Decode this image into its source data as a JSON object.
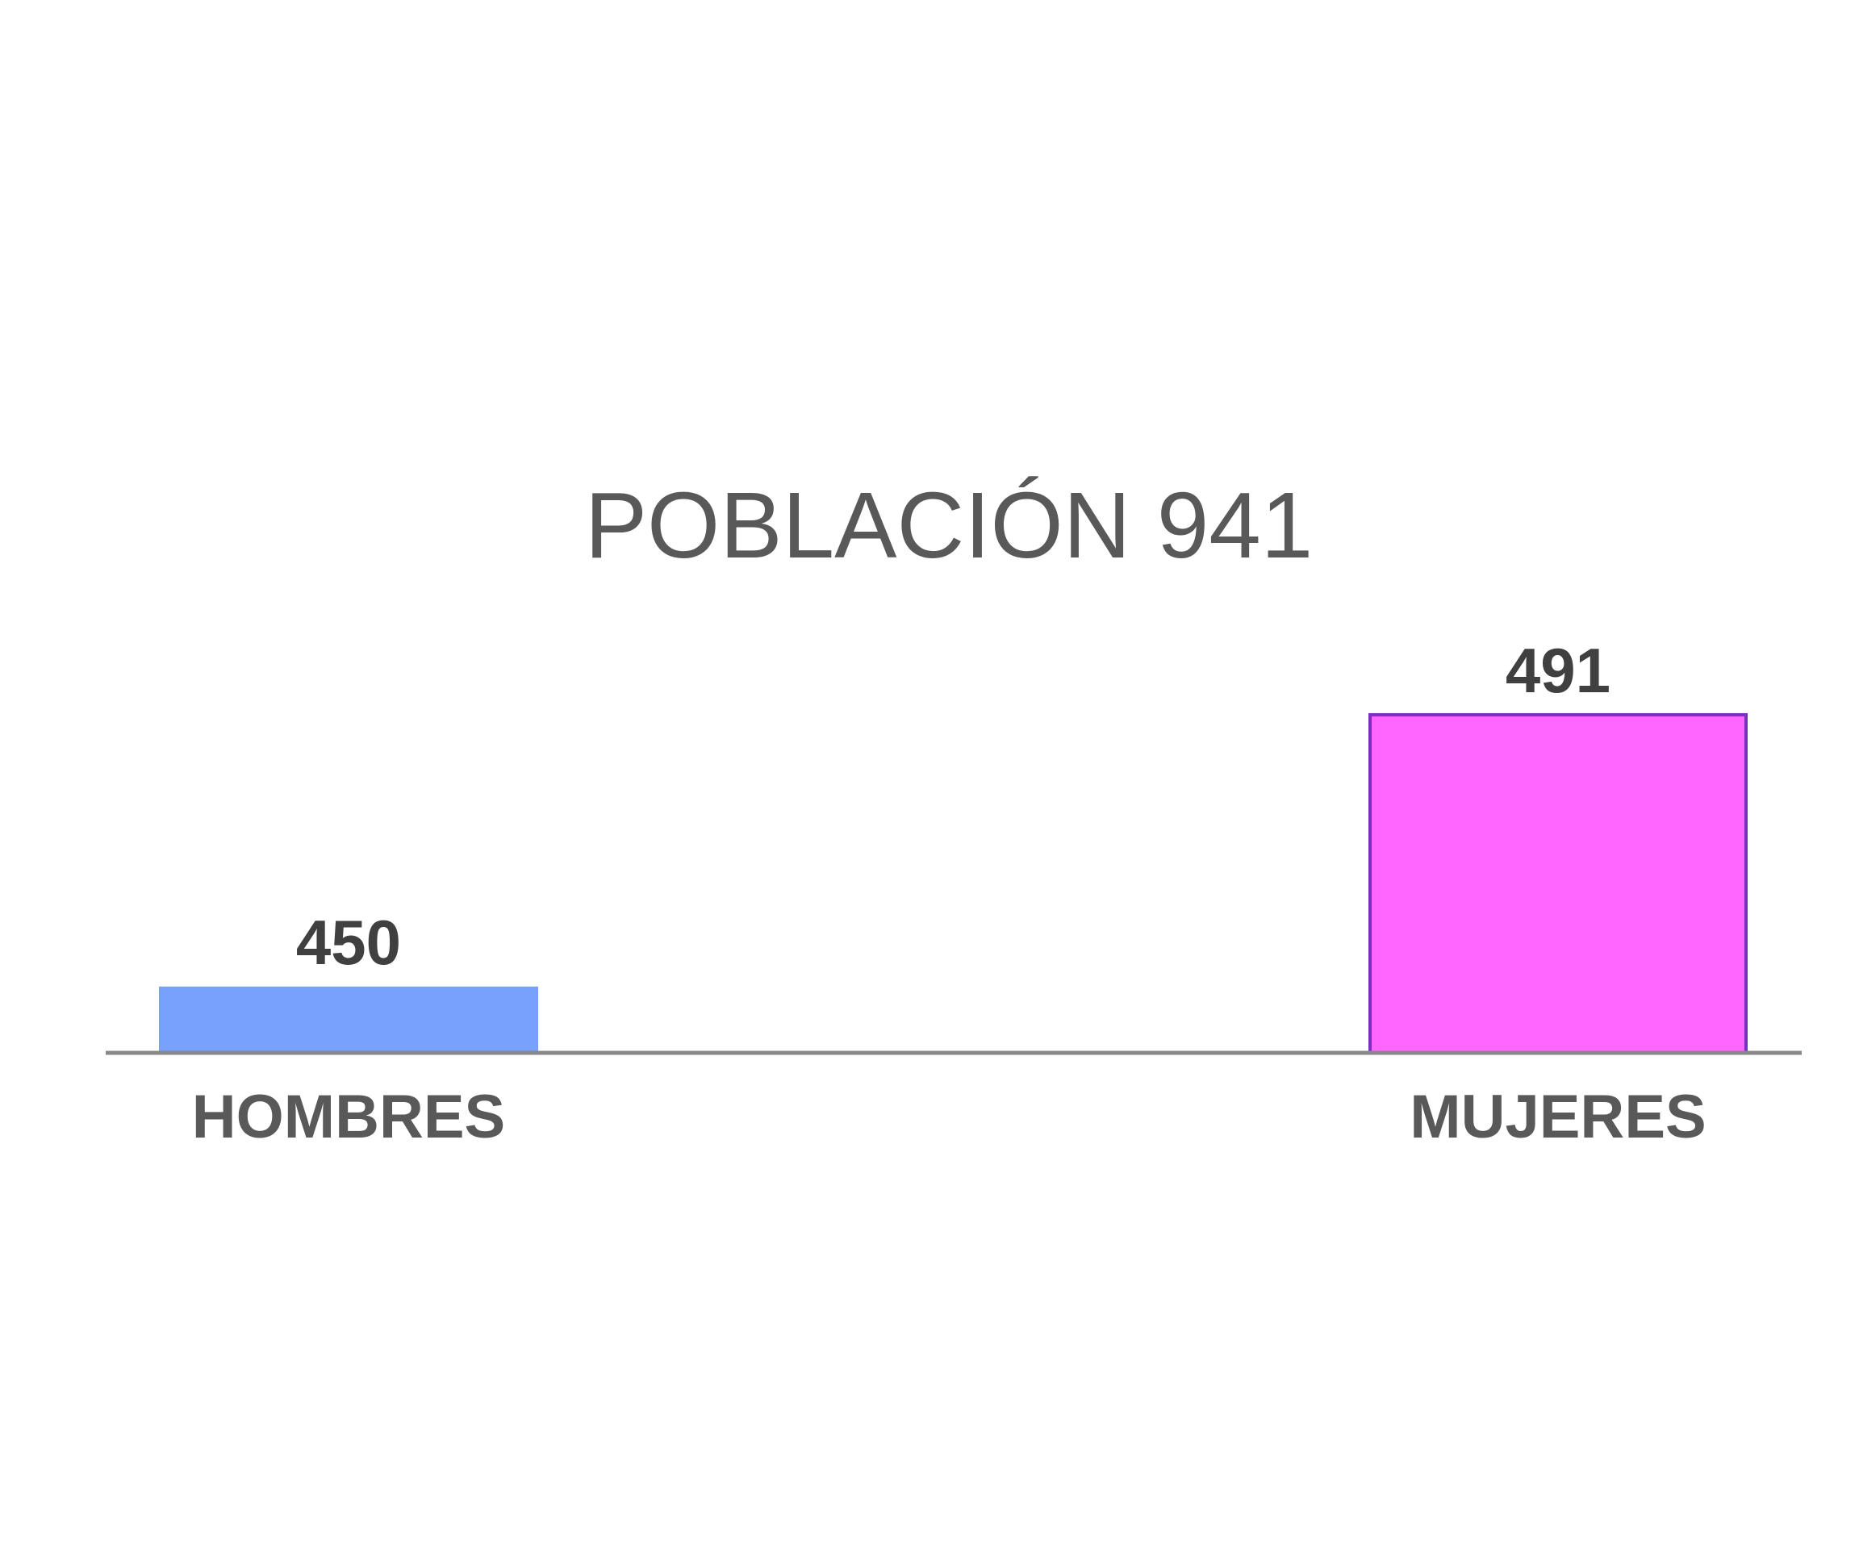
{
  "chart_data": {
    "type": "bar",
    "title": "POBLACIÓN 941",
    "categories": [
      "HOMBRES",
      "MUJERES"
    ],
    "values": [
      450,
      491
    ],
    "data_labels": [
      "450",
      "491"
    ],
    "xlabel": "",
    "ylabel": "",
    "ylim": [
      440,
      500
    ],
    "grid": false,
    "legend": "none",
    "colors": [
      "#77a1fd",
      "#ff66ff"
    ],
    "border_colors": [
      "#77a1fd",
      "#7b2fbf"
    ],
    "axis_color": "#888888"
  }
}
